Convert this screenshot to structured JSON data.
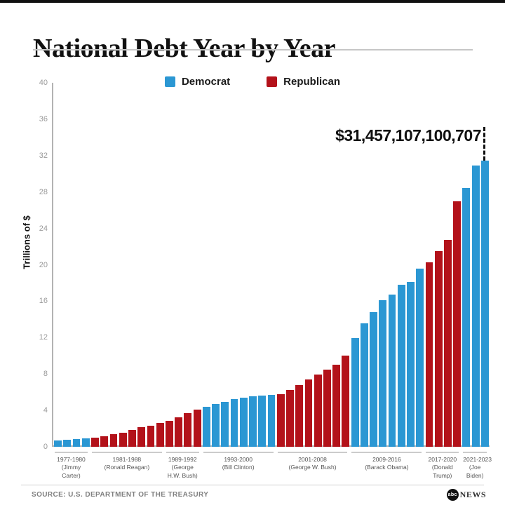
{
  "header": {
    "title": "National Debt Year by Year"
  },
  "colors": {
    "democrat": "#2b97d3",
    "republican": "#b3121a",
    "axis": "#b3b3b3",
    "tick_text": "#9a9a9a",
    "annotation_text": "#111111"
  },
  "legend": {
    "items": [
      {
        "label": "Democrat",
        "color": "#2b97d3",
        "party": "D"
      },
      {
        "label": "Republican",
        "color": "#b3121a",
        "party": "R"
      }
    ]
  },
  "annotation": {
    "text": "$31,457,107,100,707"
  },
  "chart_data": {
    "type": "bar",
    "title": "National Debt Year by Year",
    "xlabel": "",
    "ylabel": "Trillions of $",
    "ylim": [
      0,
      40
    ],
    "yticks": [
      0,
      4,
      8,
      12,
      16,
      20,
      24,
      28,
      32,
      36,
      40
    ],
    "grid": false,
    "legend_position": "top-center",
    "years": [
      1977,
      1978,
      1979,
      1980,
      1981,
      1982,
      1983,
      1984,
      1985,
      1986,
      1987,
      1988,
      1989,
      1990,
      1991,
      1992,
      1993,
      1994,
      1995,
      1996,
      1997,
      1998,
      1999,
      2000,
      2001,
      2002,
      2003,
      2004,
      2005,
      2006,
      2007,
      2008,
      2009,
      2010,
      2011,
      2012,
      2013,
      2014,
      2015,
      2016,
      2017,
      2018,
      2019,
      2020,
      2021,
      2022,
      2023
    ],
    "values": [
      0.7,
      0.77,
      0.83,
      0.91,
      1.0,
      1.14,
      1.38,
      1.57,
      1.82,
      2.12,
      2.35,
      2.6,
      2.86,
      3.23,
      3.67,
      4.06,
      4.41,
      4.69,
      4.97,
      5.22,
      5.41,
      5.53,
      5.66,
      5.67,
      5.81,
      6.23,
      6.78,
      7.38,
      7.93,
      8.51,
      9.01,
      10.02,
      11.91,
      13.56,
      14.79,
      16.07,
      16.74,
      17.82,
      18.15,
      19.57,
      20.24,
      21.52,
      22.72,
      26.95,
      28.43,
      30.93,
      31.46
    ],
    "groups": [
      {
        "years": "1977-1980",
        "name": "(Jimmy Carter)",
        "party": "D",
        "count": 4
      },
      {
        "years": "1981-1988",
        "name": "(Ronald Reagan)",
        "party": "R",
        "count": 8
      },
      {
        "years": "1989-1992",
        "name": "(George H.W. Bush)",
        "party": "R",
        "count": 4
      },
      {
        "years": "1993-2000",
        "name": "(Bill Clinton)",
        "party": "D",
        "count": 8
      },
      {
        "years": "2001-2008",
        "name": "(George W. Bush)",
        "party": "R",
        "count": 8
      },
      {
        "years": "2009-2016",
        "name": "(Barack Obama)",
        "party": "D",
        "count": 8
      },
      {
        "years": "2017-2020",
        "name": "(Donald Trump)",
        "party": "R",
        "count": 4
      },
      {
        "years": "2021-2023",
        "name": "(Joe Biden)",
        "party": "D",
        "count": 3
      }
    ],
    "annotated_value": {
      "year": 2023,
      "label": "$31,457,107,100,707"
    }
  },
  "footer": {
    "source": "SOURCE: U.S. DEPARTMENT OF THE TREASURY",
    "logo_abc": "abc",
    "logo_news": "NEWS"
  }
}
